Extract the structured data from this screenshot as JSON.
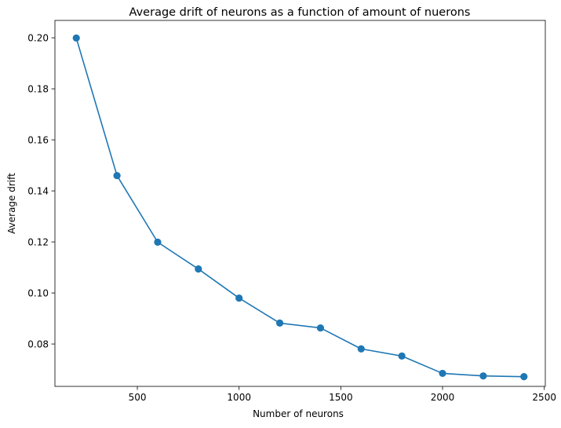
{
  "chart_data": {
    "type": "line",
    "title": "Average drift of neurons as a function of amount of nuerons",
    "xlabel": "Number of neurons",
    "ylabel": "Average drift",
    "xlim": [
      95,
      2505
    ],
    "ylim": [
      0.0634,
      0.2068
    ],
    "xticks": [
      500,
      1000,
      1500,
      2000,
      2500
    ],
    "xtick_labels": [
      "500",
      "1000",
      "1500",
      "2000",
      "2500"
    ],
    "yticks": [
      0.08,
      0.1,
      0.12,
      0.14,
      0.16,
      0.18,
      0.2
    ],
    "ytick_labels": [
      "0.08",
      "0.10",
      "0.12",
      "0.14",
      "0.16",
      "0.18",
      "0.20"
    ],
    "grid": false,
    "legend": "none",
    "series": [
      {
        "color": "#1f77b4",
        "marker": "circle",
        "x": [
          200,
          400,
          600,
          800,
          1000,
          1200,
          1400,
          1600,
          1800,
          2000,
          2200,
          2400
        ],
        "y": [
          0.1999,
          0.146,
          0.1199,
          0.1094,
          0.098,
          0.0882,
          0.0863,
          0.0781,
          0.0753,
          0.0685,
          0.0675,
          0.0672
        ]
      }
    ]
  }
}
